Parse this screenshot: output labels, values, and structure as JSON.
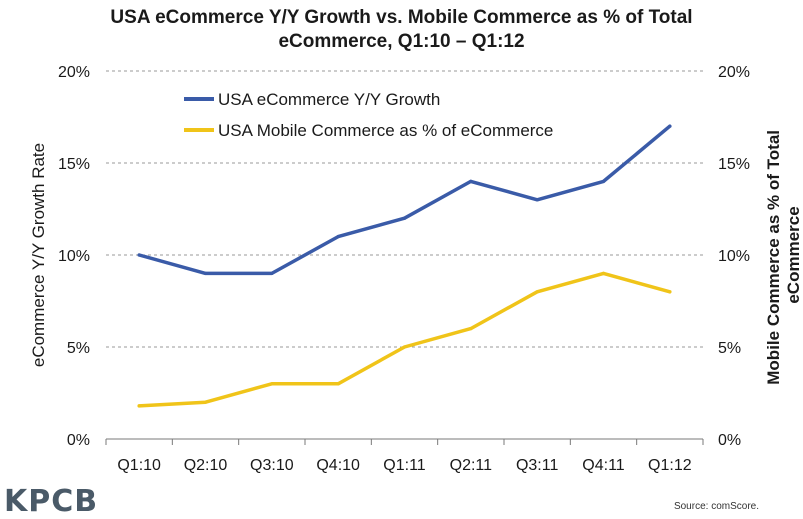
{
  "chart_data": {
    "type": "line",
    "title_line1": "USA eCommerce Y/Y Growth vs. Mobile Commerce as % of Total",
    "title_line2": "eCommerce, Q1:10 – Q1:12",
    "categories": [
      "Q1:10",
      "Q2:10",
      "Q3:10",
      "Q4:10",
      "Q1:11",
      "Q2:11",
      "Q3:11",
      "Q4:11",
      "Q1:12"
    ],
    "series": [
      {
        "name": "USA eCommerce Y/Y Growth",
        "color": "#3a5ba8",
        "axis": "left",
        "values": [
          10,
          9,
          9,
          11,
          12,
          14,
          13,
          14,
          17
        ]
      },
      {
        "name": "USA Mobile Commerce as % of eCommerce",
        "color": "#f0c419",
        "axis": "right",
        "values": [
          1.8,
          2,
          3,
          3,
          5,
          6,
          8,
          9,
          8
        ]
      }
    ],
    "ylabel_left": "eCommerce Y/Y Growth Rate",
    "ylabel_right_line1": "Mobile Commerce as % of Total",
    "ylabel_right_line2": "eCommerce",
    "ylim": [
      0,
      20
    ],
    "yticks": [
      "0%",
      "5%",
      "10%",
      "15%",
      "20%"
    ],
    "legend_position": "top-left",
    "grid": "horizontal-dashed"
  },
  "footer": {
    "logo": "KPCB",
    "source": "Source: comScore."
  }
}
